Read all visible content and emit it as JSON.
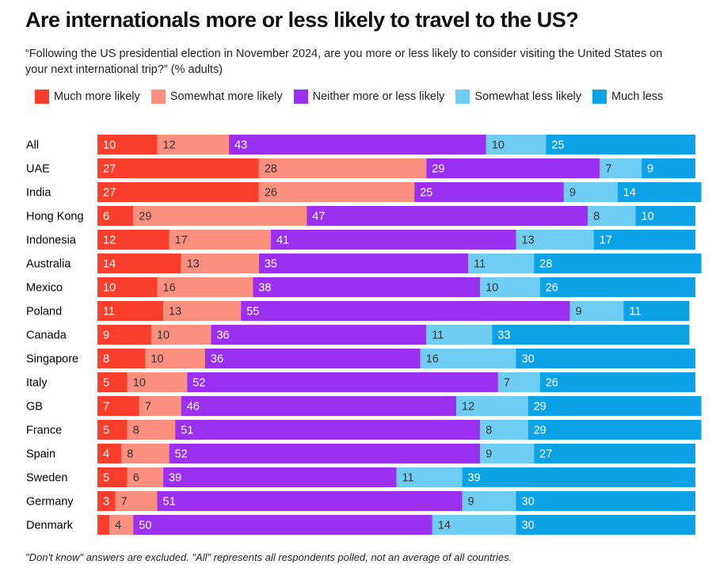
{
  "chart_data": {
    "type": "stacked-bar",
    "title": "Are internationals more or less likely to travel to the US?",
    "subtitle": "“Following the US presidential election in November 2024, are you more or less likely to consider visiting the United States on your next international trip?” (% adults)",
    "note": "\"Don't know\" answers are excluded. \"All\" represents all respondents polled, not an average of all countries.",
    "categories": [
      "All",
      "UAE",
      "India",
      "Hong Kong",
      "Indonesia",
      "Australia",
      "Mexico",
      "Poland",
      "Canada",
      "Singapore",
      "Italy",
      "GB",
      "France",
      "Spain",
      "Sweden",
      "Germany",
      "Denmark"
    ],
    "xlim": [
      0,
      100
    ],
    "series": [
      {
        "name": "Much more likely",
        "color": "#fb3d2c",
        "label_color": "#ffffff",
        "values": [
          10,
          27,
          27,
          6,
          12,
          14,
          10,
          11,
          9,
          8,
          5,
          7,
          5,
          4,
          5,
          3,
          2
        ]
      },
      {
        "name": "Somewhat more likely",
        "color": "#fd8f7e",
        "label_color": "#333333",
        "values": [
          12,
          28,
          26,
          29,
          17,
          13,
          16,
          13,
          10,
          10,
          10,
          7,
          8,
          8,
          6,
          7,
          4
        ]
      },
      {
        "name": "Neither more or less likely",
        "color": "#9b30f0",
        "label_color": "#ffffff",
        "values": [
          43,
          29,
          25,
          47,
          41,
          35,
          38,
          55,
          36,
          36,
          52,
          46,
          51,
          52,
          39,
          51,
          50
        ]
      },
      {
        "name": "Somewhat less likely",
        "color": "#6fcdf4",
        "label_color": "#333333",
        "values": [
          10,
          7,
          9,
          8,
          13,
          11,
          10,
          9,
          11,
          16,
          7,
          12,
          8,
          9,
          11,
          9,
          14
        ]
      },
      {
        "name": "Much less",
        "color": "#0ba2e6",
        "label_color": "#ffffff",
        "values": [
          25,
          9,
          14,
          10,
          17,
          28,
          26,
          11,
          33,
          30,
          26,
          29,
          29,
          27,
          39,
          30,
          30
        ]
      }
    ]
  }
}
